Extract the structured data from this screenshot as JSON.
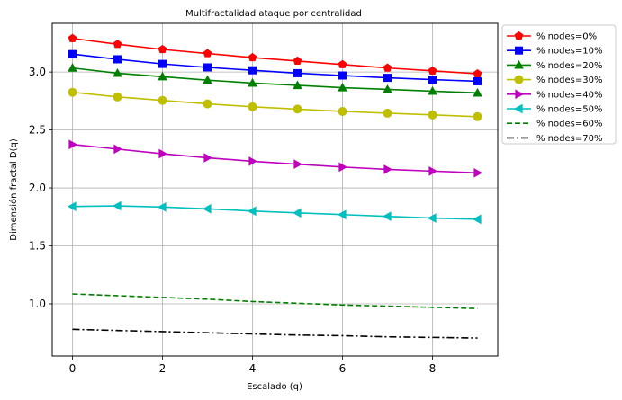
{
  "chart_data": {
    "type": "line",
    "title": "Multifractalidad ataque por centralidad",
    "xlabel": "Escalado (q)",
    "ylabel": "Dimensión fractal D(q)",
    "xlim": [
      -0.45,
      9.45
    ],
    "ylim": [
      0.55,
      3.42
    ],
    "xticks": [
      0,
      2,
      4,
      6,
      8
    ],
    "yticks": [
      1.0,
      1.5,
      2.0,
      2.5,
      3.0
    ],
    "ytick_labels": [
      "1.0",
      "1.5",
      "2.0",
      "2.5",
      "3.0"
    ],
    "grid": true,
    "legend_position": "outside-right",
    "x": [
      0,
      1,
      2,
      3,
      4,
      5,
      6,
      7,
      8,
      9
    ],
    "series": [
      {
        "name": "% nodes=0%",
        "color": "#ff0000",
        "marker": "pentagon",
        "dash": "solid",
        "values": [
          3.29,
          3.24,
          3.195,
          3.16,
          3.125,
          3.095,
          3.065,
          3.035,
          3.01,
          2.985
        ]
      },
      {
        "name": "% nodes=10%",
        "color": "#0000ff",
        "marker": "square",
        "dash": "solid",
        "values": [
          3.155,
          3.11,
          3.07,
          3.04,
          3.015,
          2.99,
          2.97,
          2.95,
          2.935,
          2.92
        ]
      },
      {
        "name": "% nodes=20%",
        "color": "#008000",
        "marker": "triangle-up",
        "dash": "solid",
        "values": [
          3.035,
          2.99,
          2.96,
          2.93,
          2.905,
          2.885,
          2.865,
          2.85,
          2.835,
          2.82
        ]
      },
      {
        "name": "% nodes=30%",
        "color": "#bfbf00",
        "marker": "circle",
        "dash": "solid",
        "values": [
          2.825,
          2.785,
          2.755,
          2.725,
          2.7,
          2.68,
          2.66,
          2.645,
          2.63,
          2.615
        ]
      },
      {
        "name": "% nodes=40%",
        "color": "#bf00bf",
        "marker": "triangle-right",
        "dash": "solid",
        "values": [
          2.375,
          2.335,
          2.295,
          2.26,
          2.23,
          2.205,
          2.18,
          2.16,
          2.145,
          2.13
        ]
      },
      {
        "name": "% nodes=50%",
        "color": "#00bfbf",
        "marker": "triangle-left",
        "dash": "solid",
        "values": [
          1.84,
          1.845,
          1.835,
          1.82,
          1.8,
          1.785,
          1.77,
          1.755,
          1.74,
          1.73
        ]
      },
      {
        "name": "% nodes=60%",
        "color": "#008000",
        "marker": "none",
        "dash": "dashed",
        "values": [
          1.085,
          1.07,
          1.055,
          1.04,
          1.02,
          1.005,
          0.99,
          0.98,
          0.97,
          0.96
        ]
      },
      {
        "name": "% nodes=70%",
        "color": "#000000",
        "marker": "none",
        "dash": "dashdot",
        "values": [
          0.78,
          0.77,
          0.76,
          0.75,
          0.74,
          0.73,
          0.725,
          0.715,
          0.71,
          0.705
        ]
      }
    ]
  }
}
